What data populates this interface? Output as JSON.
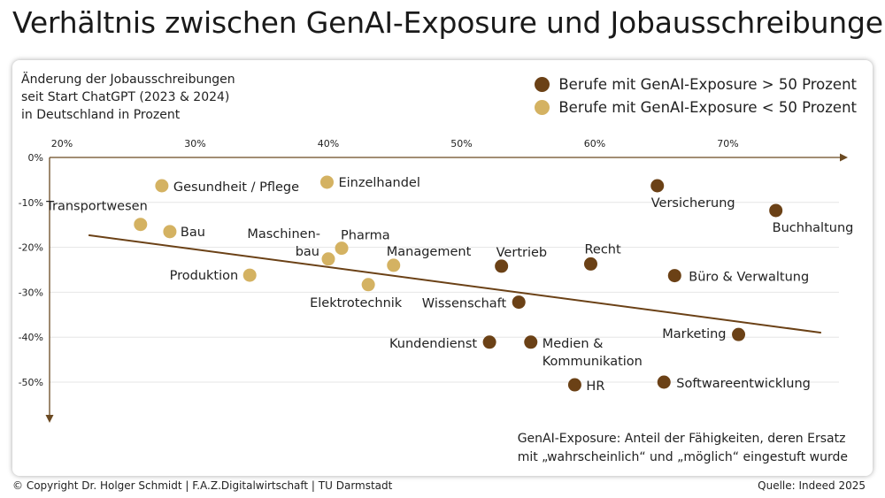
{
  "title": "Verhältnis zwischen GenAI-Exposure und Jobausschreibungen",
  "y_axis_label": [
    "Änderung der Jobausschreibungen",
    "seit Start ChatGPT (2023 & 2024)",
    "in Deutschland in Prozent"
  ],
  "note": [
    "GenAI-Exposure: Anteil der Fähigkeiten, deren Ersatz",
    "mit „wahrscheinlich“ und „möglich“ eingestuft wurde"
  ],
  "footer": {
    "copyright": "© Copyright Dr. Holger Schmidt | F.A.Z.Digitalwirtschaft | TU Darmstadt",
    "source": "Quelle: Indeed 2025"
  },
  "colors": {
    "high": "#6b4116",
    "low": "#d4b262",
    "axis": "#6b4a22",
    "grid": "#e6e6e6"
  },
  "chart_data": {
    "type": "scatter",
    "x_ticks": [
      20,
      30,
      40,
      50,
      60,
      70
    ],
    "x_tick_labels": [
      "20%",
      "30%",
      "40%",
      "50%",
      "60%",
      "70%"
    ],
    "y_ticks": [
      0,
      -10,
      -20,
      -30,
      -40,
      -50
    ],
    "y_tick_labels": [
      "0%",
      "-10%",
      "-20%",
      "-30%",
      "-40%",
      "-50%"
    ],
    "xlim": [
      20,
      78
    ],
    "ylim": [
      -58,
      0
    ],
    "series": [
      {
        "name": "Berufe mit GenAI-Exposure > 50 Prozent",
        "color_key": "high",
        "points": [
          {
            "label": "Versicherung",
            "x": 64.7,
            "y": -6.3
          },
          {
            "label": "Buchhaltung",
            "x": 73.6,
            "y": -11.8
          },
          {
            "label": "Recht",
            "x": 59.7,
            "y": -23.7
          },
          {
            "label": "Vertrieb",
            "x": 53.0,
            "y": -24.2
          },
          {
            "label": "Büro & Verwaltung",
            "x": 66.0,
            "y": -26.3
          },
          {
            "label": "Wissenschaft",
            "x": 54.3,
            "y": -32.2
          },
          {
            "label": "Marketing",
            "x": 70.8,
            "y": -39.4
          },
          {
            "label": "Kundendienst",
            "x": 52.1,
            "y": -41.1
          },
          {
            "label": "Medien & Kommunikation",
            "x": 55.2,
            "y": -41.1
          },
          {
            "label": "Softwareentwicklung",
            "x": 65.2,
            "y": -50.0
          },
          {
            "label": "HR",
            "x": 58.5,
            "y": -50.6
          }
        ]
      },
      {
        "name": "Berufe mit GenAI-Exposure < 50 Prozent",
        "color_key": "low",
        "points": [
          {
            "label": "Gesundheit / Pflege",
            "x": 27.5,
            "y": -6.3
          },
          {
            "label": "Einzelhandel",
            "x": 39.9,
            "y": -5.5
          },
          {
            "label": "Transportwesen",
            "x": 25.9,
            "y": -14.9
          },
          {
            "label": "Bau",
            "x": 28.1,
            "y": -16.5
          },
          {
            "label": "Pharma",
            "x": 41.0,
            "y": -20.2
          },
          {
            "label": "Maschinenbau",
            "x": 40.0,
            "y": -22.6
          },
          {
            "label": "Management",
            "x": 44.9,
            "y": -24.0
          },
          {
            "label": "Produktion",
            "x": 34.1,
            "y": -26.2
          },
          {
            "label": "Elektrotechnik",
            "x": 43.0,
            "y": -28.3
          }
        ]
      }
    ],
    "trendline": {
      "x": [
        22,
        77
      ],
      "y": [
        -17.3,
        -39.0
      ]
    }
  }
}
